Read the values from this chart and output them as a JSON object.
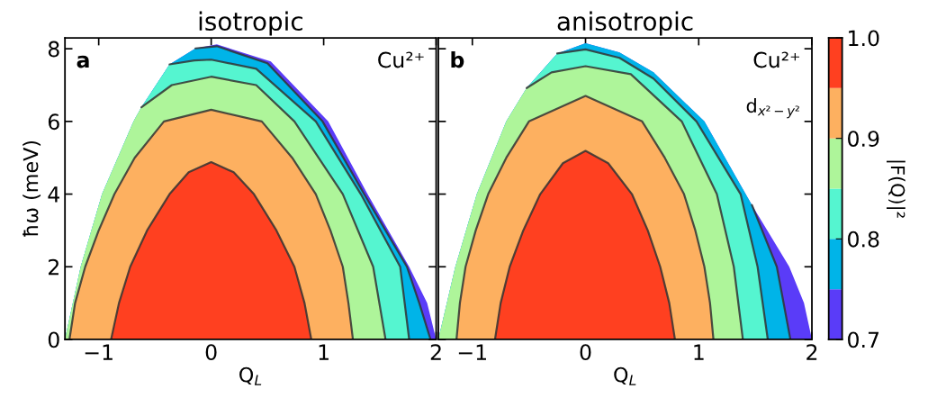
{
  "chart_data": [
    {
      "type": "area",
      "title": "isotropic",
      "xlabel": "Q$_{L}$",
      "ylabel": "ħω (meV)",
      "xlim": [
        -1.3,
        2.0
      ],
      "ylim": [
        0,
        8.3
      ],
      "xticks": [
        {
          "value": -1,
          "label": "−1"
        },
        0,
        1,
        2
      ],
      "yticks": [
        0,
        2,
        4,
        6,
        8
      ],
      "grid": false,
      "legend": false,
      "annotations": [
        "a",
        "Cu²⁺"
      ],
      "series": [
        {
          "color": "#5a3cf8",
          "x": [
            -1.3,
            -1.16,
            -0.97,
            -0.69,
            -0.62,
            -0.37,
            -0.14,
            0.05,
            0.53,
            1.04,
            1.39,
            1.76,
            1.92,
            2.0
          ],
          "values": [
            0,
            2,
            4,
            6,
            6.39,
            7.57,
            8.01,
            8.12,
            7.65,
            6,
            4,
            2,
            1,
            0
          ]
        },
        {
          "color": "#00b4e8",
          "x": [
            -1.3,
            -1.16,
            -0.97,
            -0.69,
            -0.62,
            -0.37,
            -0.14,
            0.05,
            0.5,
            0.99,
            1.36,
            1.74,
            1.85,
            1.95
          ],
          "values": [
            0,
            2,
            4,
            6,
            6.39,
            7.57,
            8.01,
            8.07,
            7.6,
            6,
            4,
            2,
            1,
            0
          ]
        },
        {
          "color": "#55f5d0",
          "x": [
            -1.3,
            -1.16,
            -0.97,
            -0.69,
            -0.62,
            -0.37,
            -0.15,
            0,
            0.4,
            0.93,
            1.33,
            1.68,
            1.76
          ],
          "values": [
            0,
            2,
            4,
            6,
            6.39,
            7.57,
            7.68,
            7.7,
            7.45,
            6,
            4,
            2,
            0
          ]
        },
        {
          "color": "#aef59a",
          "x": [
            -1.3,
            -1.16,
            -0.97,
            -0.69,
            -0.62,
            -0.35,
            0,
            0.4,
            0.74,
            1.17,
            1.44,
            1.55
          ],
          "values": [
            0,
            2,
            4,
            6,
            6.39,
            7.0,
            7.23,
            7.0,
            6,
            4,
            2,
            0
          ]
        },
        {
          "color": "#fdb060",
          "x": [
            -1.26,
            -1.21,
            -1.12,
            -1.0,
            -0.86,
            -0.68,
            -0.42,
            0,
            0.45,
            0.72,
            0.93,
            1.06,
            1.17,
            1.22,
            1.26
          ],
          "values": [
            0,
            1,
            2,
            3,
            4,
            5,
            6,
            6.32,
            6,
            5,
            4,
            3,
            2,
            1,
            0
          ]
        },
        {
          "color": "#ff4020",
          "x": [
            -0.89,
            -0.82,
            -0.72,
            -0.57,
            -0.37,
            -0.2,
            0,
            0.2,
            0.38,
            0.58,
            0.74,
            0.83,
            0.89
          ],
          "values": [
            0,
            1,
            2,
            3,
            4,
            4.6,
            4.88,
            4.6,
            4,
            3,
            2,
            1,
            0
          ]
        }
      ]
    },
    {
      "type": "area",
      "title": "anisotropic",
      "xlabel": "Q$_{L}$",
      "xlim": [
        -1.3,
        2.0
      ],
      "ylim": [
        0,
        8.3
      ],
      "xticks": [
        {
          "value": -1,
          "label": "−1"
        },
        0,
        1,
        2
      ],
      "yticks": [
        0,
        2,
        4,
        6,
        8
      ],
      "tick_labels": "x",
      "grid": false,
      "legend": false,
      "annotations": [
        "b",
        "Cu²⁺",
        "d$_{x²−y²}$"
      ],
      "clabel": "|F(Q)|²",
      "clim": [
        0.7,
        1.0
      ],
      "cticks": [
        0.7,
        0.8,
        0.9,
        {
          "value": 1,
          "label": "1.0"
        }
      ],
      "series": [
        {
          "color": "#5a3cf8",
          "x": [
            -1.3,
            -1.15,
            -0.96,
            -0.7,
            -0.52,
            -0.25,
            0,
            0.3,
            0.6,
            1.05,
            1.47,
            1.8,
            1.93,
            2.0
          ],
          "values": [
            0,
            2,
            4,
            6,
            6.92,
            7.87,
            8.15,
            7.9,
            7.35,
            6,
            3.7,
            2,
            1,
            0
          ]
        },
        {
          "color": "#00b4e8",
          "x": [
            -1.3,
            -1.15,
            -0.96,
            -0.7,
            -0.52,
            -0.25,
            0,
            0.3,
            0.6,
            1.05,
            1.47,
            1.69,
            1.81
          ],
          "values": [
            0,
            2,
            4,
            6,
            6.92,
            7.87,
            8.15,
            7.9,
            7.35,
            6,
            3.7,
            2,
            0
          ]
        },
        {
          "color": "#55f5d0",
          "x": [
            -1.3,
            -1.15,
            -0.96,
            -0.7,
            -0.52,
            -0.25,
            0,
            0.3,
            0.6,
            0.98,
            1.37,
            1.52,
            1.61
          ],
          "values": [
            0,
            2,
            4,
            6,
            6.92,
            7.87,
            7.98,
            7.75,
            7.18,
            6,
            4,
            2,
            0
          ]
        },
        {
          "color": "#aef59a",
          "x": [
            -1.3,
            -1.15,
            -0.96,
            -0.7,
            -0.52,
            -0.3,
            0,
            0.4,
            0.85,
            1.16,
            1.31,
            1.39
          ],
          "values": [
            0,
            2,
            4,
            6,
            6.92,
            7.35,
            7.52,
            7.3,
            6,
            4,
            2,
            0
          ]
        },
        {
          "color": "#fdb060",
          "x": [
            -1.14,
            -1.11,
            -1.06,
            -0.97,
            -0.86,
            -0.7,
            -0.5,
            0,
            0.5,
            0.7,
            0.87,
            0.97,
            1.05,
            1.1,
            1.13
          ],
          "values": [
            0,
            1,
            2,
            3,
            4,
            5,
            6,
            6.7,
            6,
            5,
            4,
            3,
            2,
            1,
            0
          ]
        },
        {
          "color": "#ff4020",
          "x": [
            -0.8,
            -0.75,
            -0.67,
            -0.55,
            -0.4,
            -0.2,
            0,
            0.2,
            0.41,
            0.55,
            0.66,
            0.74,
            0.79
          ],
          "values": [
            0,
            1,
            2,
            3,
            4,
            4.85,
            5.19,
            4.85,
            4,
            3,
            2,
            1,
            0
          ]
        }
      ]
    }
  ]
}
